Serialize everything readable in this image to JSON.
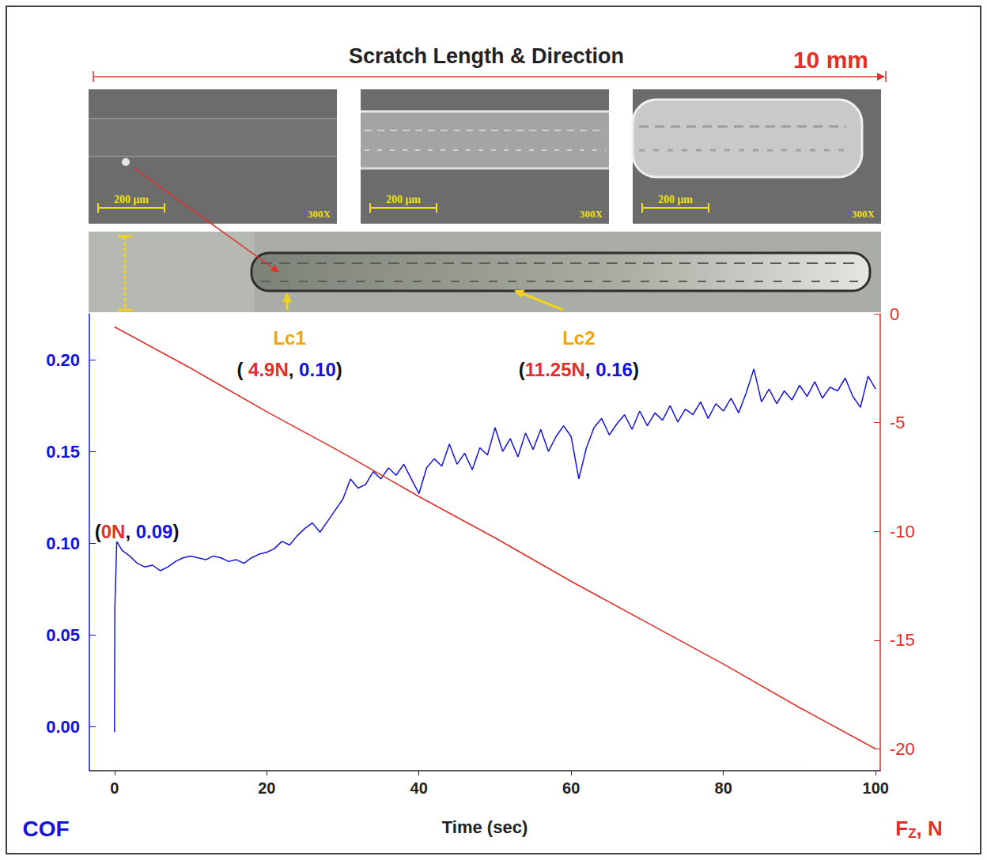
{
  "header": {
    "title": "Scratch Length & Direction",
    "length": "10 mm"
  },
  "micrographs": [
    {
      "scale_bar": "200 μm",
      "magnification": "300X"
    },
    {
      "scale_bar": "200 μm",
      "magnification": "300X"
    },
    {
      "scale_bar": "200 μm",
      "magnification": "300X"
    }
  ],
  "chart_data": {
    "type": "line",
    "xlabel": "Time (sec)",
    "ylabel": "COF",
    "y2label": "FZ, N",
    "xlim": [
      -3.3,
      100.6
    ],
    "xticks": [
      0,
      20,
      40,
      60,
      80,
      100
    ],
    "ylim": [
      -0.024,
      0.225
    ],
    "yticks": [
      {
        "value": 0,
        "label": "0.00"
      },
      {
        "value": 0.05,
        "label": "0.05"
      },
      {
        "value": 0.1,
        "label": "0.10"
      },
      {
        "value": 0.15,
        "label": "0.15"
      },
      {
        "value": 0.2,
        "label": "0.20"
      }
    ],
    "y2lim": [
      -21,
      0
    ],
    "y2ticks": [
      0,
      -5,
      -10,
      -15,
      -20
    ],
    "grid": false,
    "series": [
      {
        "color": "#1414dc",
        "x": [
          0,
          0.05,
          0.3,
          1,
          2,
          3,
          4,
          5,
          6,
          7,
          8,
          9,
          10,
          11,
          12,
          13,
          14,
          15,
          16,
          17,
          18,
          19,
          20,
          21,
          22,
          23,
          24,
          25,
          26,
          27,
          28,
          29,
          30,
          31,
          32,
          33,
          34,
          35,
          36,
          37,
          38,
          39,
          40,
          41,
          42,
          43,
          44,
          45,
          46,
          47,
          48,
          49,
          50,
          51,
          52,
          53,
          54,
          55,
          56,
          57,
          58,
          59,
          60,
          61,
          62,
          63,
          64,
          65,
          66,
          67,
          68,
          69,
          70,
          71,
          72,
          73,
          74,
          75,
          76,
          77,
          78,
          79,
          80,
          81,
          82,
          83,
          84,
          85,
          86,
          87,
          88,
          89,
          90,
          91,
          92,
          93,
          94,
          95,
          96,
          97,
          98,
          99,
          100
        ],
        "values": [
          -0.003,
          0.065,
          0.101,
          0.096,
          0.093,
          0.089,
          0.087,
          0.088,
          0.085,
          0.087,
          0.09,
          0.092,
          0.093,
          0.092,
          0.091,
          0.093,
          0.092,
          0.09,
          0.091,
          0.089,
          0.092,
          0.094,
          0.095,
          0.097,
          0.101,
          0.099,
          0.104,
          0.108,
          0.111,
          0.106,
          0.112,
          0.118,
          0.124,
          0.135,
          0.13,
          0.132,
          0.139,
          0.135,
          0.141,
          0.137,
          0.143,
          0.135,
          0.127,
          0.141,
          0.146,
          0.142,
          0.154,
          0.143,
          0.149,
          0.14,
          0.152,
          0.148,
          0.163,
          0.15,
          0.157,
          0.147,
          0.16,
          0.151,
          0.162,
          0.15,
          0.158,
          0.164,
          0.158,
          0.135,
          0.152,
          0.163,
          0.168,
          0.159,
          0.165,
          0.17,
          0.162,
          0.172,
          0.164,
          0.171,
          0.167,
          0.175,
          0.166,
          0.173,
          0.17,
          0.177,
          0.168,
          0.176,
          0.172,
          0.179,
          0.171,
          0.182,
          0.195,
          0.177,
          0.184,
          0.176,
          0.183,
          0.178,
          0.186,
          0.18,
          0.188,
          0.179,
          0.185,
          0.183,
          0.19,
          0.18,
          0.174,
          0.191,
          0.184
        ]
      },
      {
        "color": "#e0302a",
        "axis": "y2",
        "x": [
          0,
          10,
          20,
          30,
          40,
          50,
          60,
          70,
          80,
          90,
          100
        ],
        "values": [
          -0.6,
          -2.5,
          -4.5,
          -6.4,
          -8.4,
          -10.3,
          -12.3,
          -14.2,
          -16.1,
          -18.1,
          -20
        ]
      }
    ],
    "annotations": [
      {
        "label": "Lc1",
        "text": "( 4.9N, 0.10)",
        "x": 23
      },
      {
        "label": "Lc2",
        "text": "(11.25N, 0.16)",
        "x": 61
      },
      {
        "text": "(0N, 0.09)",
        "x": 0,
        "y": 0.09
      }
    ]
  }
}
